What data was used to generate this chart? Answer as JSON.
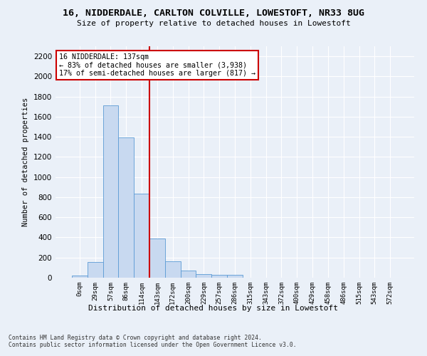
{
  "title": "16, NIDDERDALE, CARLTON COLVILLE, LOWESTOFT, NR33 8UG",
  "subtitle": "Size of property relative to detached houses in Lowestoft",
  "xlabel": "Distribution of detached houses by size in Lowestoft",
  "ylabel": "Number of detached properties",
  "bar_color": "#c8d9f0",
  "bar_edge_color": "#5b9bd5",
  "categories": [
    "0sqm",
    "29sqm",
    "57sqm",
    "86sqm",
    "114sqm",
    "143sqm",
    "172sqm",
    "200sqm",
    "229sqm",
    "257sqm",
    "286sqm",
    "315sqm",
    "343sqm",
    "372sqm",
    "400sqm",
    "429sqm",
    "458sqm",
    "486sqm",
    "515sqm",
    "543sqm",
    "572sqm"
  ],
  "values": [
    18,
    155,
    1710,
    1395,
    835,
    390,
    165,
    68,
    33,
    25,
    28,
    0,
    0,
    0,
    0,
    0,
    0,
    0,
    0,
    0,
    0
  ],
  "ylim": [
    0,
    2300
  ],
  "yticks": [
    0,
    200,
    400,
    600,
    800,
    1000,
    1200,
    1400,
    1600,
    1800,
    2000,
    2200
  ],
  "vline_index": 4.5,
  "vline_color": "#cc0000",
  "annotation_text": "16 NIDDERDALE: 137sqm\n← 83% of detached houses are smaller (3,938)\n17% of semi-detached houses are larger (817) →",
  "annotation_box_color": "#ffffff",
  "annotation_box_edge": "#cc0000",
  "footer1": "Contains HM Land Registry data © Crown copyright and database right 2024.",
  "footer2": "Contains public sector information licensed under the Open Government Licence v3.0.",
  "bg_color": "#eaf0f8",
  "plot_bg_color": "#eaf0f8",
  "grid_color": "#ffffff"
}
